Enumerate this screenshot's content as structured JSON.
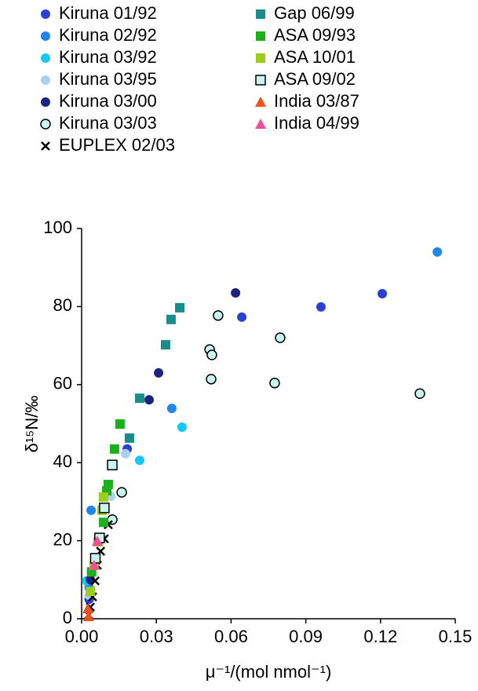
{
  "chart_data": {
    "type": "scatter",
    "x_label": "μ⁻¹/(mol nmol⁻¹)",
    "y_label": "δ¹⁵N/‰",
    "xlim": [
      0,
      0.15
    ],
    "ylim": [
      0,
      100
    ],
    "xticks": [
      {
        "value": 0,
        "label": "0.00"
      },
      0.03,
      0.06,
      0.09,
      0.12,
      0.15
    ],
    "yticks": [
      0,
      20,
      40,
      60,
      80,
      100
    ],
    "grid": false,
    "legend": "top",
    "series": [
      {
        "name": "Kiruna 01/92",
        "color": "#2b3fd6",
        "marker": "circle",
        "x": [
          0.0643,
          0.0961,
          0.1207,
          0.0183,
          0.004,
          0.003
        ],
        "values": [
          77.3,
          79.9,
          83.3,
          43.5,
          12.0,
          5.0
        ]
      },
      {
        "name": "Kiruna 02/92",
        "color": "#1f86ee",
        "marker": "circle",
        "x": [
          0.1428,
          0.0362,
          0.0038,
          0.003
        ],
        "values": [
          94.0,
          53.9,
          27.8,
          8.0
        ]
      },
      {
        "name": "Kiruna 03/92",
        "color": "#14c8f5",
        "marker": "circle",
        "x": [
          0.0403,
          0.0233,
          0.0123,
          0.002
        ],
        "values": [
          49.1,
          40.6,
          25.4,
          9.7
        ]
      },
      {
        "name": "Kiruna 03/95",
        "color": "#a8d2f2",
        "marker": "circle",
        "x": [
          0.0176,
          0.0117,
          0.003
        ],
        "values": [
          42.3,
          31.4,
          6.0
        ]
      },
      {
        "name": "Kiruna 03/00",
        "color": "#1b2580",
        "marker": "circle",
        "x": [
          0.0618,
          0.0309,
          0.0271,
          0.0035
        ],
        "values": [
          83.5,
          63.0,
          56.1,
          10.0
        ]
      },
      {
        "name": "Kiruna 03/03",
        "color": "#c8f5f0",
        "edgecolor": "#000000",
        "marker": "circle",
        "x": [
          0.0548,
          0.0797,
          0.0514,
          0.0523,
          0.052,
          0.0775,
          0.1358,
          0.0161,
          0.0123
        ],
        "values": [
          77.7,
          72.0,
          69.0,
          67.6,
          61.4,
          60.4,
          57.7,
          32.4,
          25.4
        ]
      },
      {
        "name": "EUPLEX 02/03",
        "color": "#000000",
        "marker": "x",
        "x": [
          0.0107,
          0.0091,
          0.0076,
          0.0063,
          0.0054,
          0.0044,
          0.0035,
          0.0028
        ],
        "values": [
          24.1,
          20.5,
          17.3,
          13.7,
          9.7,
          5.6,
          3.0,
          1.0
        ]
      },
      {
        "name": "Gap 06/99",
        "color": "#1b8c8c",
        "marker": "square",
        "x": [
          0.0394,
          0.0359,
          0.0337,
          0.0233,
          0.0192
        ],
        "values": [
          79.7,
          76.7,
          70.2,
          56.5,
          46.3
        ]
      },
      {
        "name": "ASA 09/93",
        "color": "#1cb01c",
        "marker": "square",
        "x": [
          0.0154,
          0.0132,
          0.0107,
          0.0101,
          0.0088,
          0.004
        ],
        "values": [
          49.9,
          43.5,
          34.4,
          32.8,
          24.7,
          12.0
        ]
      },
      {
        "name": "ASA 10/01",
        "color": "#9acd1c",
        "marker": "square",
        "x": [
          0.0088,
          0.0082,
          0.0066,
          0.005,
          0.0035
        ],
        "values": [
          31.2,
          27.8,
          19.7,
          13.7,
          7.0
        ]
      },
      {
        "name": "ASA 09/02",
        "color": "#c8f5f0",
        "edgecolor": "#000000",
        "marker": "square",
        "x": [
          0.0123,
          0.0091,
          0.0072,
          0.0055
        ],
        "values": [
          39.4,
          28.4,
          20.7,
          15.5
        ]
      },
      {
        "name": "India 03/87",
        "color": "#f0501e",
        "marker": "triangle",
        "x": [
          0.0028,
          0.0025
        ],
        "values": [
          0.6,
          2.6
        ]
      },
      {
        "name": "India 04/99",
        "color": "#f0509a",
        "marker": "triangle",
        "x": [
          0.0063,
          0.005
        ],
        "values": [
          19.9,
          13.7
        ]
      }
    ]
  }
}
